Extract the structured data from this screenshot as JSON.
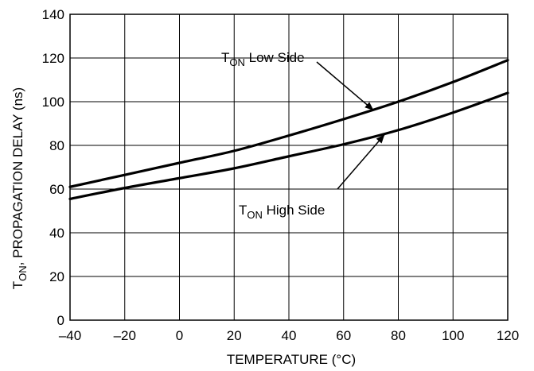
{
  "chart_data": {
    "type": "line",
    "title": "",
    "xlabel": "TEMPERATURE (°C)",
    "ylabel": {
      "prefix": "T",
      "subscript": "ON",
      "suffix": ", PROPAGATION DELAY (ns)"
    },
    "xlim": [
      -40,
      120
    ],
    "ylim": [
      0,
      140
    ],
    "xticks": [
      -40,
      -20,
      0,
      20,
      40,
      60,
      80,
      100,
      120
    ],
    "xtick_labels": [
      "–40",
      "–20",
      "0",
      "20",
      "40",
      "60",
      "80",
      "100",
      "120"
    ],
    "yticks": [
      0,
      20,
      40,
      60,
      80,
      100,
      120,
      140
    ],
    "ytick_labels": [
      "0",
      "20",
      "40",
      "60",
      "80",
      "100",
      "120",
      "140"
    ],
    "grid": true,
    "series": [
      {
        "name": "T_ON Low Side",
        "color": "#000000",
        "x": [
          -40,
          -20,
          0,
          20,
          40,
          60,
          80,
          100,
          120
        ],
        "y": [
          61,
          66.5,
          72,
          77.5,
          84.5,
          92,
          100,
          109,
          119
        ]
      },
      {
        "name": "T_ON High Side",
        "color": "#000000",
        "x": [
          -40,
          -20,
          0,
          20,
          40,
          60,
          80,
          100,
          120
        ],
        "y": [
          55.5,
          60.5,
          65,
          69.5,
          75,
          80.5,
          87,
          95,
          104
        ]
      }
    ],
    "annotations": [
      {
        "series": "T_ON Low Side",
        "prefix": "T",
        "subscript": "ON",
        "suffix": " Low Side",
        "arrow_to": [
          71,
          96
        ]
      },
      {
        "series": "T_ON High Side",
        "prefix": "T",
        "subscript": "ON",
        "suffix": " High Side",
        "arrow_to": [
          75,
          85
        ]
      }
    ]
  }
}
